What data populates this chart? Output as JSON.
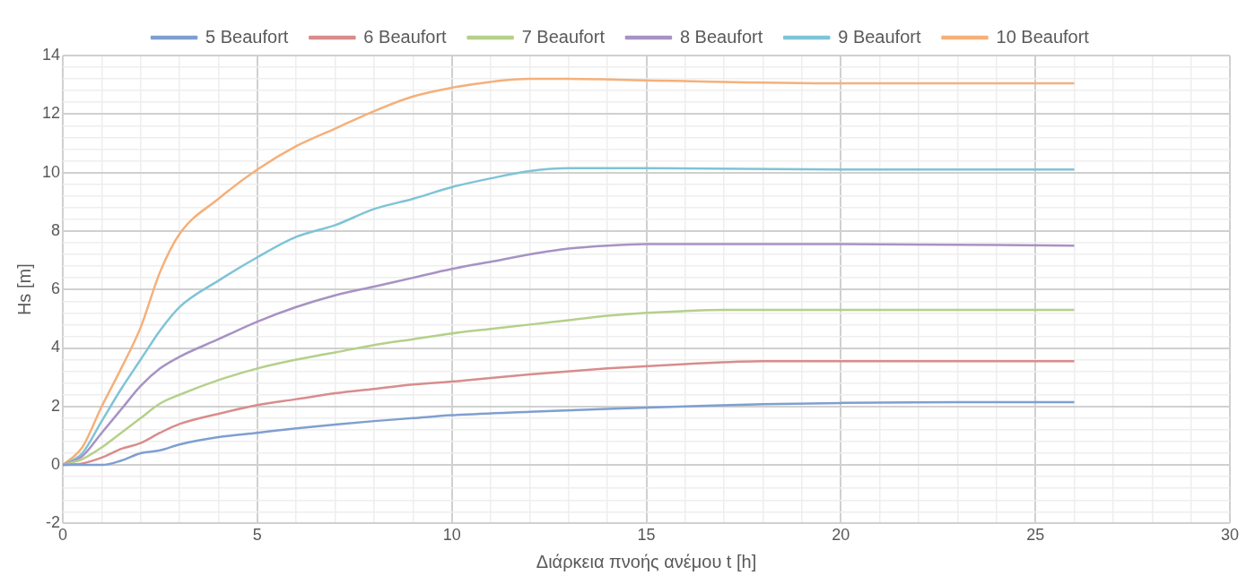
{
  "chart_data": {
    "type": "line",
    "xlabel": "Διάρκεια πνοής ανέμου t [h]",
    "ylabel": "Hs [m]",
    "legend": "top",
    "grid": true,
    "marker": "none",
    "line_style": "solid",
    "xlim": [
      0,
      30
    ],
    "ylim": [
      -2,
      14
    ],
    "xticks": [
      0,
      {
        "value": 1,
        "label": null
      },
      {
        "value": 2,
        "label": null
      },
      {
        "value": 3,
        "label": null
      },
      {
        "value": 4,
        "label": null
      },
      5,
      {
        "value": 6,
        "label": null
      },
      {
        "value": 7,
        "label": null
      },
      {
        "value": 8,
        "label": null
      },
      {
        "value": 9,
        "label": null
      },
      10,
      {
        "value": 11,
        "label": null
      },
      {
        "value": 12,
        "label": null
      },
      {
        "value": 13,
        "label": null
      },
      {
        "value": 14,
        "label": null
      },
      15,
      {
        "value": 16,
        "label": null
      },
      {
        "value": 17,
        "label": null
      },
      {
        "value": 18,
        "label": null
      },
      {
        "value": 19,
        "label": null
      },
      20,
      {
        "value": 21,
        "label": null
      },
      {
        "value": 22,
        "label": null
      },
      {
        "value": 23,
        "label": null
      },
      {
        "value": 24,
        "label": null
      },
      25,
      {
        "value": 26,
        "label": null
      },
      {
        "value": 27,
        "label": null
      },
      {
        "value": 28,
        "label": null
      },
      {
        "value": 29,
        "label": null
      },
      30
    ],
    "yticks": [
      -2,
      {
        "value": -1.6,
        "label": null
      },
      {
        "value": -1.2,
        "label": null
      },
      {
        "value": -0.8,
        "label": null
      },
      {
        "value": -0.4,
        "label": null
      },
      0,
      {
        "value": 0.4,
        "label": null
      },
      {
        "value": 0.8,
        "label": null
      },
      {
        "value": 1.2,
        "label": null
      },
      {
        "value": 1.6,
        "label": null
      },
      2,
      {
        "value": 2.4,
        "label": null
      },
      {
        "value": 2.8,
        "label": null
      },
      {
        "value": 3.2,
        "label": null
      },
      {
        "value": 3.6,
        "label": null
      },
      4,
      {
        "value": 4.4,
        "label": null
      },
      {
        "value": 4.8,
        "label": null
      },
      {
        "value": 5.2,
        "label": null
      },
      {
        "value": 5.6,
        "label": null
      },
      6,
      {
        "value": 6.4,
        "label": null
      },
      {
        "value": 6.8,
        "label": null
      },
      {
        "value": 7.2,
        "label": null
      },
      {
        "value": 7.6,
        "label": null
      },
      8,
      {
        "value": 8.4,
        "label": null
      },
      {
        "value": 8.8,
        "label": null
      },
      {
        "value": 9.2,
        "label": null
      },
      {
        "value": 9.6,
        "label": null
      },
      10,
      {
        "value": 10.4,
        "label": null
      },
      {
        "value": 10.8,
        "label": null
      },
      {
        "value": 11.2,
        "label": null
      },
      {
        "value": 11.6,
        "label": null
      },
      12,
      {
        "value": 12.4,
        "label": null
      },
      {
        "value": 12.8,
        "label": null
      },
      {
        "value": 13.2,
        "label": null
      },
      {
        "value": 13.6,
        "label": null
      },
      14
    ],
    "series": [
      {
        "name": "5 Beaufort",
        "color": "#7f9fd0",
        "x": [
          0,
          1,
          1.5,
          2,
          2.5,
          3,
          4,
          5,
          6,
          7,
          8,
          9,
          10,
          12,
          14,
          16,
          18,
          20,
          23,
          26
        ],
        "values": [
          0,
          0,
          0.15,
          0.4,
          0.5,
          0.7,
          0.95,
          1.1,
          1.25,
          1.38,
          1.5,
          1.6,
          1.7,
          1.82,
          1.92,
          2.0,
          2.08,
          2.12,
          2.15,
          2.15
        ]
      },
      {
        "name": "6 Beaufort",
        "color": "#d98c8c",
        "x": [
          0,
          0.5,
          1,
          1.5,
          2,
          2.5,
          3,
          4,
          5,
          6,
          7,
          8,
          9,
          10,
          12,
          14,
          16,
          18,
          20,
          26
        ],
        "values": [
          0,
          0.05,
          0.25,
          0.55,
          0.75,
          1.1,
          1.4,
          1.75,
          2.05,
          2.25,
          2.45,
          2.6,
          2.75,
          2.85,
          3.1,
          3.3,
          3.45,
          3.55,
          3.55,
          3.55
        ]
      },
      {
        "name": "7 Beaufort",
        "color": "#b5d08a",
        "x": [
          0,
          0.5,
          1,
          1.5,
          2,
          2.5,
          3,
          4,
          5,
          6,
          7,
          8,
          9,
          10,
          11,
          12,
          13,
          14,
          15,
          17,
          20,
          26
        ],
        "values": [
          0,
          0.2,
          0.6,
          1.1,
          1.6,
          2.1,
          2.4,
          2.9,
          3.3,
          3.6,
          3.85,
          4.1,
          4.3,
          4.5,
          4.65,
          4.8,
          4.95,
          5.1,
          5.2,
          5.3,
          5.3,
          5.3
        ]
      },
      {
        "name": "8 Beaufort",
        "color": "#a892c4",
        "x": [
          0,
          0.5,
          1,
          1.5,
          2,
          2.5,
          3,
          4,
          5,
          6,
          7,
          8,
          9,
          10,
          11,
          12,
          13,
          14,
          15,
          20,
          26
        ],
        "values": [
          0,
          0.3,
          1.1,
          1.9,
          2.7,
          3.3,
          3.7,
          4.3,
          4.9,
          5.4,
          5.8,
          6.1,
          6.4,
          6.7,
          6.95,
          7.2,
          7.4,
          7.5,
          7.55,
          7.55,
          7.5
        ]
      },
      {
        "name": "9 Beaufort",
        "color": "#7fc4d6",
        "x": [
          0,
          0.5,
          1,
          1.5,
          2,
          2.5,
          3,
          4,
          5,
          6,
          7,
          8,
          9,
          10,
          11,
          12,
          13,
          15,
          20,
          26
        ],
        "values": [
          0,
          0.4,
          1.5,
          2.6,
          3.6,
          4.6,
          5.4,
          6.3,
          7.1,
          7.8,
          8.2,
          8.75,
          9.1,
          9.5,
          9.8,
          10.05,
          10.15,
          10.15,
          10.1,
          10.1
        ]
      },
      {
        "name": "10 Beaufort",
        "color": "#f5b07a",
        "x": [
          0,
          0.5,
          1,
          1.5,
          2,
          2.5,
          3,
          4,
          5,
          6,
          7,
          8,
          9,
          10,
          11,
          12,
          13,
          15,
          20,
          26
        ],
        "values": [
          0,
          0.6,
          2.0,
          3.3,
          4.7,
          6.6,
          7.9,
          9.1,
          10.1,
          10.9,
          11.5,
          12.1,
          12.6,
          12.9,
          13.1,
          13.2,
          13.2,
          13.15,
          13.05,
          13.05
        ]
      }
    ]
  }
}
